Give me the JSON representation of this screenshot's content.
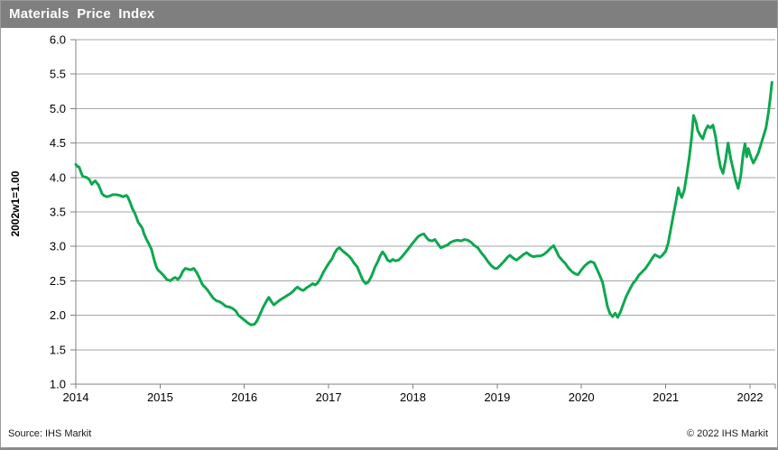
{
  "title": "Materials Price Index",
  "footer": {
    "source": "Source:  IHS Markit",
    "copyright": "© 2022  IHS Markit"
  },
  "colors": {
    "title_bar": "#7f7f7f",
    "title_text": "#ffffff",
    "gridline": "#a6a6a6",
    "axis": "#808080",
    "line": "#0fa750",
    "background": "#ffffff"
  },
  "chart_data": {
    "type": "line",
    "title": "Materials Price Index",
    "xlabel": "",
    "ylabel": "2002w1=1.00",
    "xlim": [
      2014,
      2022.3
    ],
    "ylim": [
      1.0,
      6.0
    ],
    "x_ticks": [
      2014,
      2015,
      2016,
      2017,
      2018,
      2019,
      2020,
      2021,
      2022
    ],
    "x_tick_labels": [
      "2014",
      "2015",
      "2016",
      "2017",
      "2018",
      "2019",
      "2020",
      "2021",
      "2022"
    ],
    "y_ticks": [
      1.0,
      1.5,
      2.0,
      2.5,
      3.0,
      3.5,
      4.0,
      4.5,
      5.0,
      5.5,
      6.0
    ],
    "y_tick_labels": [
      "1.0",
      "1.5",
      "2.0",
      "2.5",
      "3.0",
      "3.5",
      "4.0",
      "4.5",
      "5.0",
      "5.5",
      "6.0"
    ],
    "grid": "horizontal",
    "legend": "none",
    "line_color": "#0fa750",
    "line_width": 3,
    "series": [
      {
        "name": "Materials Price Index (2002w1=1.00)",
        "points": [
          [
            2014.0,
            4.19
          ],
          [
            2014.02,
            4.16
          ],
          [
            2014.04,
            4.15
          ],
          [
            2014.06,
            4.08
          ],
          [
            2014.08,
            4.02
          ],
          [
            2014.1,
            4.01
          ],
          [
            2014.13,
            4.0
          ],
          [
            2014.16,
            3.97
          ],
          [
            2014.19,
            3.9
          ],
          [
            2014.21,
            3.93
          ],
          [
            2014.23,
            3.95
          ],
          [
            2014.25,
            3.92
          ],
          [
            2014.27,
            3.89
          ],
          [
            2014.29,
            3.83
          ],
          [
            2014.31,
            3.77
          ],
          [
            2014.33,
            3.74
          ],
          [
            2014.37,
            3.72
          ],
          [
            2014.4,
            3.73
          ],
          [
            2014.44,
            3.75
          ],
          [
            2014.48,
            3.75
          ],
          [
            2014.52,
            3.74
          ],
          [
            2014.56,
            3.72
          ],
          [
            2014.58,
            3.73
          ],
          [
            2014.6,
            3.74
          ],
          [
            2014.62,
            3.71
          ],
          [
            2014.65,
            3.62
          ],
          [
            2014.67,
            3.55
          ],
          [
            2014.7,
            3.48
          ],
          [
            2014.72,
            3.42
          ],
          [
            2014.74,
            3.35
          ],
          [
            2014.77,
            3.3
          ],
          [
            2014.79,
            3.26
          ],
          [
            2014.81,
            3.18
          ],
          [
            2014.84,
            3.1
          ],
          [
            2014.87,
            3.03
          ],
          [
            2014.9,
            2.95
          ],
          [
            2014.92,
            2.85
          ],
          [
            2014.94,
            2.76
          ],
          [
            2014.96,
            2.69
          ],
          [
            2014.98,
            2.65
          ],
          [
            2015.0,
            2.63
          ],
          [
            2015.04,
            2.58
          ],
          [
            2015.08,
            2.52
          ],
          [
            2015.12,
            2.5
          ],
          [
            2015.15,
            2.53
          ],
          [
            2015.18,
            2.55
          ],
          [
            2015.21,
            2.52
          ],
          [
            2015.24,
            2.56
          ],
          [
            2015.27,
            2.64
          ],
          [
            2015.3,
            2.68
          ],
          [
            2015.33,
            2.67
          ],
          [
            2015.36,
            2.66
          ],
          [
            2015.4,
            2.68
          ],
          [
            2015.43,
            2.63
          ],
          [
            2015.46,
            2.56
          ],
          [
            2015.5,
            2.45
          ],
          [
            2015.53,
            2.41
          ],
          [
            2015.56,
            2.37
          ],
          [
            2015.6,
            2.3
          ],
          [
            2015.63,
            2.25
          ],
          [
            2015.67,
            2.21
          ],
          [
            2015.7,
            2.2
          ],
          [
            2015.74,
            2.17
          ],
          [
            2015.78,
            2.13
          ],
          [
            2015.82,
            2.12
          ],
          [
            2015.86,
            2.1
          ],
          [
            2015.9,
            2.06
          ],
          [
            2015.93,
            2.0
          ],
          [
            2015.96,
            1.97
          ],
          [
            2016.0,
            1.93
          ],
          [
            2016.04,
            1.89
          ],
          [
            2016.08,
            1.86
          ],
          [
            2016.12,
            1.87
          ],
          [
            2016.15,
            1.92
          ],
          [
            2016.18,
            2.0
          ],
          [
            2016.22,
            2.11
          ],
          [
            2016.26,
            2.2
          ],
          [
            2016.29,
            2.26
          ],
          [
            2016.32,
            2.2
          ],
          [
            2016.35,
            2.15
          ],
          [
            2016.38,
            2.18
          ],
          [
            2016.42,
            2.22
          ],
          [
            2016.46,
            2.25
          ],
          [
            2016.5,
            2.28
          ],
          [
            2016.54,
            2.31
          ],
          [
            2016.58,
            2.35
          ],
          [
            2016.61,
            2.39
          ],
          [
            2016.63,
            2.41
          ],
          [
            2016.66,
            2.38
          ],
          [
            2016.7,
            2.36
          ],
          [
            2016.74,
            2.4
          ],
          [
            2016.78,
            2.43
          ],
          [
            2016.81,
            2.46
          ],
          [
            2016.84,
            2.44
          ],
          [
            2016.87,
            2.47
          ],
          [
            2016.9,
            2.53
          ],
          [
            2016.94,
            2.63
          ],
          [
            2016.97,
            2.69
          ],
          [
            2017.0,
            2.75
          ],
          [
            2017.04,
            2.82
          ],
          [
            2017.07,
            2.9
          ],
          [
            2017.1,
            2.96
          ],
          [
            2017.13,
            2.98
          ],
          [
            2017.16,
            2.94
          ],
          [
            2017.2,
            2.9
          ],
          [
            2017.24,
            2.86
          ],
          [
            2017.27,
            2.82
          ],
          [
            2017.3,
            2.76
          ],
          [
            2017.34,
            2.7
          ],
          [
            2017.37,
            2.61
          ],
          [
            2017.41,
            2.5
          ],
          [
            2017.44,
            2.46
          ],
          [
            2017.47,
            2.48
          ],
          [
            2017.51,
            2.57
          ],
          [
            2017.55,
            2.7
          ],
          [
            2017.58,
            2.77
          ],
          [
            2017.61,
            2.86
          ],
          [
            2017.64,
            2.92
          ],
          [
            2017.67,
            2.87
          ],
          [
            2017.7,
            2.8
          ],
          [
            2017.73,
            2.78
          ],
          [
            2017.76,
            2.81
          ],
          [
            2017.79,
            2.79
          ],
          [
            2017.83,
            2.8
          ],
          [
            2017.87,
            2.85
          ],
          [
            2017.91,
            2.91
          ],
          [
            2017.95,
            2.97
          ],
          [
            2017.98,
            3.02
          ],
          [
            2018.02,
            3.08
          ],
          [
            2018.06,
            3.14
          ],
          [
            2018.1,
            3.17
          ],
          [
            2018.13,
            3.18
          ],
          [
            2018.16,
            3.13
          ],
          [
            2018.19,
            3.09
          ],
          [
            2018.23,
            3.08
          ],
          [
            2018.26,
            3.1
          ],
          [
            2018.3,
            3.03
          ],
          [
            2018.33,
            2.98
          ],
          [
            2018.37,
            3.0
          ],
          [
            2018.41,
            3.02
          ],
          [
            2018.45,
            3.06
          ],
          [
            2018.49,
            3.08
          ],
          [
            2018.53,
            3.09
          ],
          [
            2018.57,
            3.08
          ],
          [
            2018.61,
            3.1
          ],
          [
            2018.65,
            3.09
          ],
          [
            2018.69,
            3.06
          ],
          [
            2018.73,
            3.01
          ],
          [
            2018.77,
            2.98
          ],
          [
            2018.81,
            2.91
          ],
          [
            2018.85,
            2.85
          ],
          [
            2018.89,
            2.78
          ],
          [
            2018.93,
            2.72
          ],
          [
            2018.97,
            2.68
          ],
          [
            2019.0,
            2.68
          ],
          [
            2019.04,
            2.73
          ],
          [
            2019.08,
            2.78
          ],
          [
            2019.12,
            2.84
          ],
          [
            2019.15,
            2.87
          ],
          [
            2019.19,
            2.83
          ],
          [
            2019.23,
            2.8
          ],
          [
            2019.27,
            2.84
          ],
          [
            2019.31,
            2.88
          ],
          [
            2019.35,
            2.91
          ],
          [
            2019.39,
            2.87
          ],
          [
            2019.43,
            2.85
          ],
          [
            2019.47,
            2.86
          ],
          [
            2019.51,
            2.86
          ],
          [
            2019.55,
            2.88
          ],
          [
            2019.59,
            2.92
          ],
          [
            2019.63,
            2.97
          ],
          [
            2019.67,
            3.01
          ],
          [
            2019.7,
            2.94
          ],
          [
            2019.73,
            2.86
          ],
          [
            2019.77,
            2.8
          ],
          [
            2019.81,
            2.75
          ],
          [
            2019.85,
            2.68
          ],
          [
            2019.89,
            2.63
          ],
          [
            2019.93,
            2.6
          ],
          [
            2019.96,
            2.59
          ],
          [
            2020.0,
            2.66
          ],
          [
            2020.04,
            2.72
          ],
          [
            2020.08,
            2.76
          ],
          [
            2020.11,
            2.78
          ],
          [
            2020.15,
            2.76
          ],
          [
            2020.18,
            2.68
          ],
          [
            2020.21,
            2.6
          ],
          [
            2020.25,
            2.48
          ],
          [
            2020.28,
            2.3
          ],
          [
            2020.31,
            2.12
          ],
          [
            2020.34,
            2.02
          ],
          [
            2020.37,
            1.98
          ],
          [
            2020.4,
            2.03
          ],
          [
            2020.43,
            1.97
          ],
          [
            2020.46,
            2.04
          ],
          [
            2020.49,
            2.14
          ],
          [
            2020.53,
            2.27
          ],
          [
            2020.57,
            2.37
          ],
          [
            2020.61,
            2.46
          ],
          [
            2020.65,
            2.52
          ],
          [
            2020.68,
            2.58
          ],
          [
            2020.72,
            2.63
          ],
          [
            2020.76,
            2.68
          ],
          [
            2020.8,
            2.75
          ],
          [
            2020.84,
            2.83
          ],
          [
            2020.87,
            2.88
          ],
          [
            2020.9,
            2.86
          ],
          [
            2020.93,
            2.84
          ],
          [
            2020.96,
            2.87
          ],
          [
            2021.0,
            2.93
          ],
          [
            2021.03,
            3.05
          ],
          [
            2021.06,
            3.25
          ],
          [
            2021.09,
            3.45
          ],
          [
            2021.12,
            3.64
          ],
          [
            2021.15,
            3.85
          ],
          [
            2021.17,
            3.76
          ],
          [
            2021.19,
            3.71
          ],
          [
            2021.22,
            3.82
          ],
          [
            2021.25,
            4.05
          ],
          [
            2021.28,
            4.3
          ],
          [
            2021.31,
            4.62
          ],
          [
            2021.33,
            4.9
          ],
          [
            2021.36,
            4.8
          ],
          [
            2021.38,
            4.68
          ],
          [
            2021.41,
            4.61
          ],
          [
            2021.44,
            4.56
          ],
          [
            2021.47,
            4.68
          ],
          [
            2021.5,
            4.75
          ],
          [
            2021.53,
            4.72
          ],
          [
            2021.56,
            4.76
          ],
          [
            2021.59,
            4.6
          ],
          [
            2021.62,
            4.35
          ],
          [
            2021.65,
            4.15
          ],
          [
            2021.68,
            4.06
          ],
          [
            2021.71,
            4.25
          ],
          [
            2021.74,
            4.5
          ],
          [
            2021.77,
            4.28
          ],
          [
            2021.8,
            4.12
          ],
          [
            2021.83,
            3.96
          ],
          [
            2021.86,
            3.84
          ],
          [
            2021.89,
            4.02
          ],
          [
            2021.92,
            4.35
          ],
          [
            2021.94,
            4.49
          ],
          [
            2021.96,
            4.3
          ],
          [
            2021.98,
            4.42
          ],
          [
            2022.01,
            4.3
          ],
          [
            2022.04,
            4.21
          ],
          [
            2022.07,
            4.28
          ],
          [
            2022.1,
            4.36
          ],
          [
            2022.13,
            4.48
          ],
          [
            2022.16,
            4.6
          ],
          [
            2022.19,
            4.72
          ],
          [
            2022.22,
            4.95
          ],
          [
            2022.24,
            5.15
          ],
          [
            2022.26,
            5.38
          ]
        ]
      }
    ]
  }
}
